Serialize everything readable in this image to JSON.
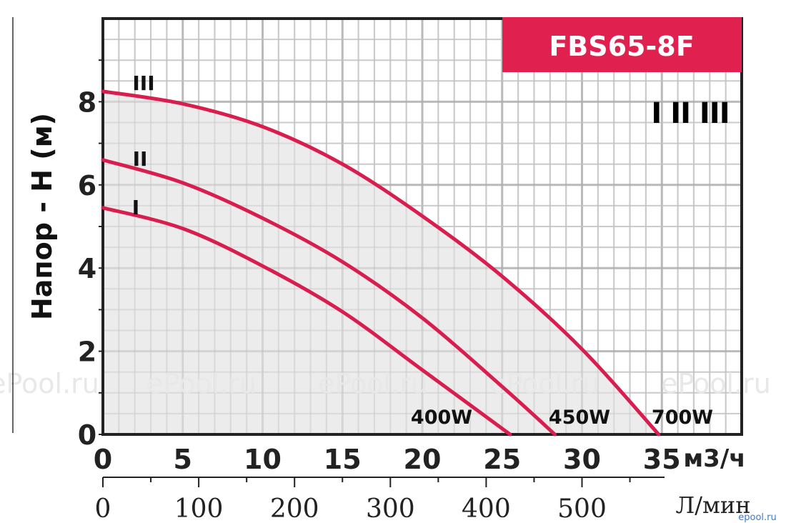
{
  "chart_data": {
    "type": "line",
    "title": "FBS65-8F",
    "ylabel": "Напор - Н (м)",
    "xlabel_primary": "м3/ч",
    "xlabel_secondary": "Л/мин",
    "xlim": [
      0,
      40
    ],
    "ylim": [
      0,
      10
    ],
    "x_ticks": [
      "0",
      "5",
      "10",
      "15",
      "20",
      "25",
      "30",
      "35"
    ],
    "x2_ticks": [
      "0",
      "100",
      "200",
      "300",
      "400",
      "500"
    ],
    "y_ticks": [
      "0",
      "2",
      "4",
      "6",
      "8"
    ],
    "grid": true,
    "legend_label": "I II III",
    "watermark": "ePool.ru",
    "corner_logo": "epool.ru",
    "curve_color": "#d81e4e",
    "title_bg": "#e0204f",
    "series": [
      {
        "name": "I",
        "power": "400W",
        "x": [
          0,
          5,
          10,
          15,
          20,
          25.5
        ],
        "y": [
          5.45,
          4.95,
          4.05,
          2.95,
          1.55,
          0
        ]
      },
      {
        "name": "II",
        "power": "450W",
        "x": [
          0,
          5,
          10,
          15,
          20,
          25,
          28.3
        ],
        "y": [
          6.6,
          6.05,
          5.2,
          4.15,
          2.8,
          1.15,
          0
        ]
      },
      {
        "name": "III",
        "power": "700W",
        "x": [
          0,
          5,
          10,
          15,
          20,
          25,
          30,
          34.8
        ],
        "y": [
          8.25,
          7.95,
          7.4,
          6.5,
          5.25,
          3.8,
          2.05,
          0
        ]
      }
    ]
  }
}
